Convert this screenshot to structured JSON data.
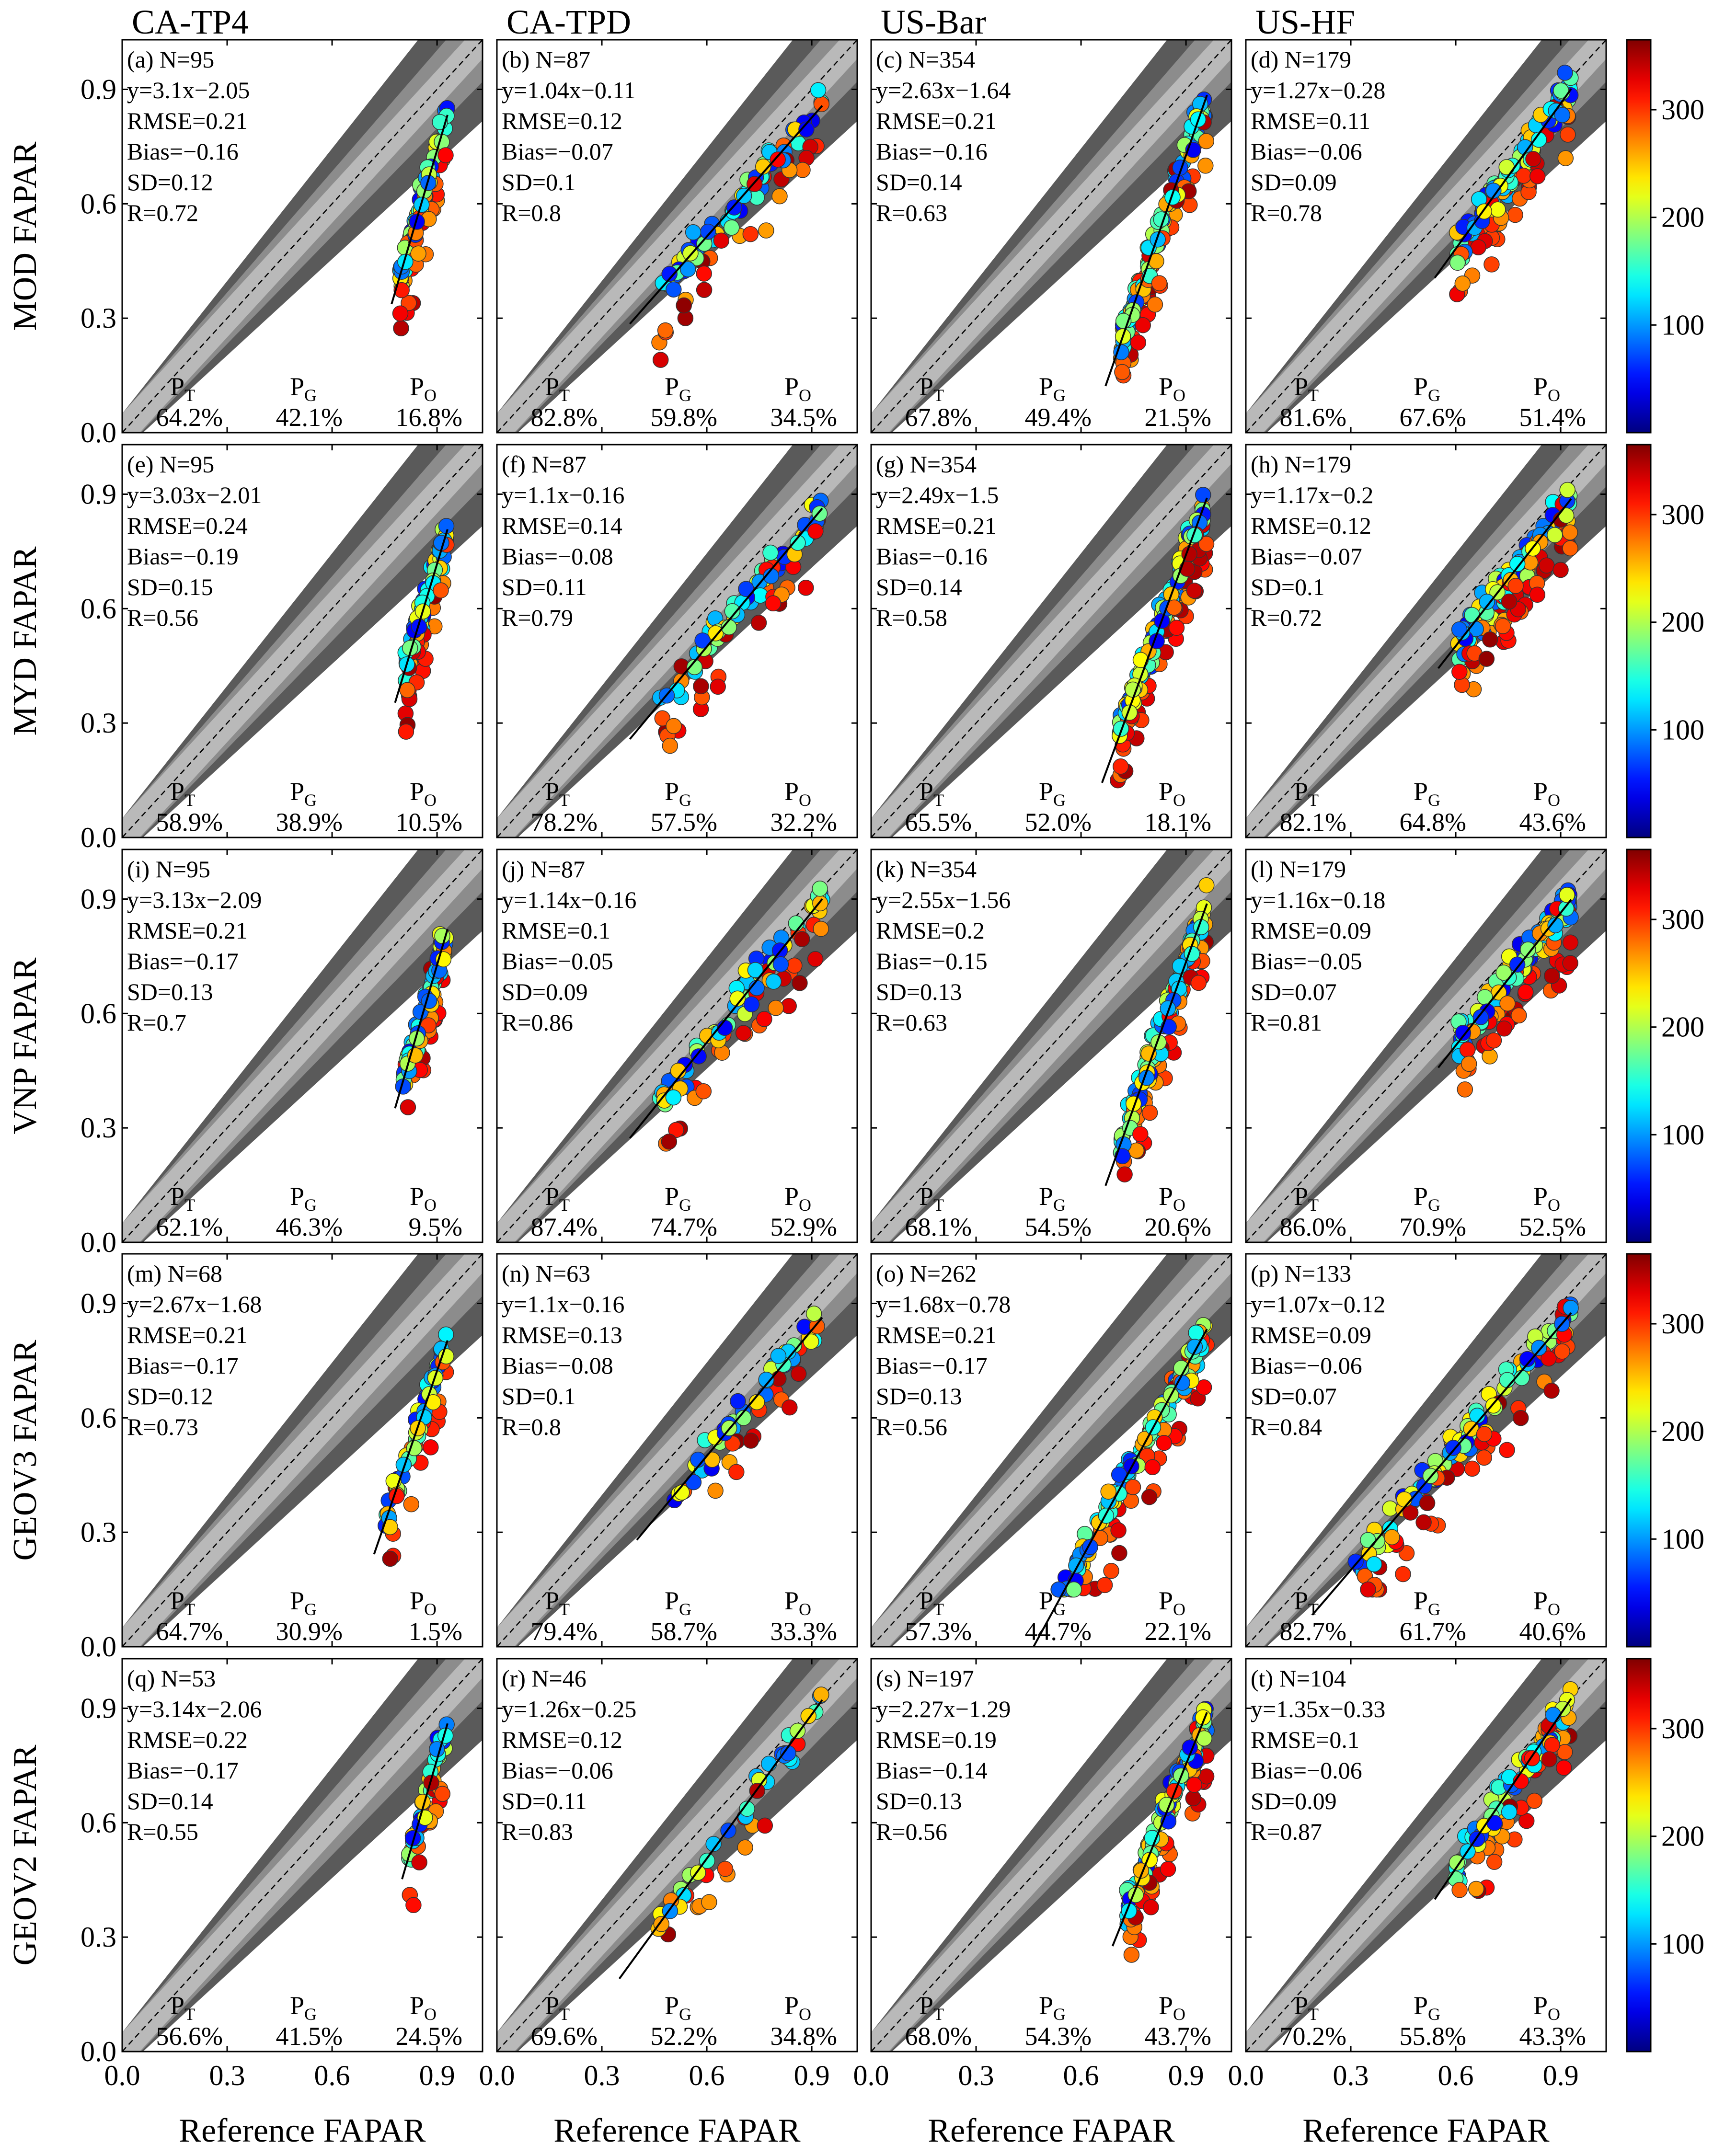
{
  "figure": {
    "xlabel": "Reference FAPAR",
    "column_titles": [
      "CA-TP4",
      "CA-TPD",
      "US-Bar",
      "US-HF"
    ],
    "row_labels": [
      "MOD FAPAR",
      "MYD FAPAR",
      "VNP FAPAR",
      "GEOV3 FAPAR",
      "GEOV2 FAPAR"
    ],
    "axis_range": [
      0,
      1.03
    ],
    "ticks": [
      "0.0",
      "0.3",
      "0.6",
      "0.9"
    ],
    "colorbar": {
      "range": [
        0,
        365
      ],
      "ticks": [
        "100",
        "200",
        "300"
      ],
      "colormap": "jet"
    },
    "shading": {
      "outer": "#5a5a5a",
      "middle": "#8c8c8c",
      "inner": "#b9b9b9"
    },
    "percent_labels": [
      "P",
      "P",
      "P"
    ],
    "percent_subs": [
      "T",
      "G",
      "O"
    ]
  },
  "chart_data": [
    {
      "panel": "(a)",
      "site": "CA-TP4",
      "product": "MOD FAPAR",
      "N": "N=95",
      "eq": "y=3.1x−2.05",
      "rmse": "RMSE=0.21",
      "bias": "Bias=−0.16",
      "sd": "SD=0.12",
      "r": "R=0.72",
      "pt": "64.2%",
      "pg": "42.1%",
      "po": "16.8%",
      "slope": 3.1,
      "intercept": -2.05,
      "xfit": [
        0.77,
        0.93
      ]
    },
    {
      "panel": "(b)",
      "site": "CA-TPD",
      "product": "MOD FAPAR",
      "N": "N=87",
      "eq": "y=1.04x−0.11",
      "rmse": "RMSE=0.12",
      "bias": "Bias=−0.07",
      "sd": "SD=0.1",
      "r": "R=0.8",
      "pt": "82.8%",
      "pg": "59.8%",
      "po": "34.5%",
      "slope": 1.04,
      "intercept": -0.11,
      "xfit": [
        0.38,
        0.93
      ]
    },
    {
      "panel": "(c)",
      "site": "US-Bar",
      "product": "MOD FAPAR",
      "N": "N=354",
      "eq": "y=2.63x−1.64",
      "rmse": "RMSE=0.21",
      "bias": "Bias=−0.16",
      "sd": "SD=0.14",
      "r": "R=0.63",
      "pt": "67.8%",
      "pg": "49.4%",
      "po": "21.5%",
      "slope": 2.63,
      "intercept": -1.64,
      "xfit": [
        0.67,
        0.96
      ]
    },
    {
      "panel": "(d)",
      "site": "US-HF",
      "product": "MOD FAPAR",
      "N": "N=179",
      "eq": "y=1.27x−0.28",
      "rmse": "RMSE=0.11",
      "bias": "Bias=−0.06",
      "sd": "SD=0.09",
      "r": "R=0.78",
      "pt": "81.6%",
      "pg": "67.6%",
      "po": "51.4%",
      "slope": 1.27,
      "intercept": -0.28,
      "xfit": [
        0.54,
        0.93
      ]
    },
    {
      "panel": "(e)",
      "site": "CA-TP4",
      "product": "MYD FAPAR",
      "N": "N=95",
      "eq": "y=3.03x−2.01",
      "rmse": "RMSE=0.24",
      "bias": "Bias=−0.19",
      "sd": "SD=0.15",
      "r": "R=0.56",
      "pt": "58.9%",
      "pg": "38.9%",
      "po": "10.5%",
      "slope": 3.03,
      "intercept": -2.01,
      "xfit": [
        0.78,
        0.93
      ]
    },
    {
      "panel": "(f)",
      "site": "CA-TPD",
      "product": "MYD FAPAR",
      "N": "N=87",
      "eq": "y=1.1x−0.16",
      "rmse": "RMSE=0.14",
      "bias": "Bias=−0.08",
      "sd": "SD=0.11",
      "r": "R=0.79",
      "pt": "78.2%",
      "pg": "57.5%",
      "po": "32.2%",
      "slope": 1.1,
      "intercept": -0.16,
      "xfit": [
        0.38,
        0.93
      ]
    },
    {
      "panel": "(g)",
      "site": "US-Bar",
      "product": "MYD FAPAR",
      "N": "N=354",
      "eq": "y=2.49x−1.5",
      "rmse": "RMSE=0.21",
      "bias": "Bias=−0.16",
      "sd": "SD=0.14",
      "r": "R=0.58",
      "pt": "65.5%",
      "pg": "52.0%",
      "po": "18.1%",
      "slope": 2.49,
      "intercept": -1.5,
      "xfit": [
        0.66,
        0.96
      ]
    },
    {
      "panel": "(h)",
      "site": "US-HF",
      "product": "MYD FAPAR",
      "N": "N=179",
      "eq": "y=1.17x−0.2",
      "rmse": "RMSE=0.12",
      "bias": "Bias=−0.07",
      "sd": "SD=0.1",
      "r": "R=0.72",
      "pt": "82.1%",
      "pg": "64.8%",
      "po": "43.6%",
      "slope": 1.17,
      "intercept": -0.2,
      "xfit": [
        0.55,
        0.93
      ]
    },
    {
      "panel": "(i)",
      "site": "CA-TP4",
      "product": "VNP FAPAR",
      "N": "N=95",
      "eq": "y=3.13x−2.09",
      "rmse": "RMSE=0.21",
      "bias": "Bias=−0.17",
      "sd": "SD=0.13",
      "r": "R=0.7",
      "pt": "62.1%",
      "pg": "46.3%",
      "po": "9.5%",
      "slope": 3.13,
      "intercept": -2.09,
      "xfit": [
        0.78,
        0.93
      ]
    },
    {
      "panel": "(j)",
      "site": "CA-TPD",
      "product": "VNP FAPAR",
      "N": "N=87",
      "eq": "y=1.14x−0.16",
      "rmse": "RMSE=0.1",
      "bias": "Bias=−0.05",
      "sd": "SD=0.09",
      "r": "R=0.86",
      "pt": "87.4%",
      "pg": "74.7%",
      "po": "52.9%",
      "slope": 1.14,
      "intercept": -0.16,
      "xfit": [
        0.38,
        0.93
      ]
    },
    {
      "panel": "(k)",
      "site": "US-Bar",
      "product": "VNP FAPAR",
      "N": "N=354",
      "eq": "y=2.55x−1.56",
      "rmse": "RMSE=0.2",
      "bias": "Bias=−0.15",
      "sd": "SD=0.13",
      "r": "R=0.63",
      "pt": "68.1%",
      "pg": "54.5%",
      "po": "20.6%",
      "slope": 2.55,
      "intercept": -1.56,
      "xfit": [
        0.67,
        0.96
      ]
    },
    {
      "panel": "(l)",
      "site": "US-HF",
      "product": "VNP FAPAR",
      "N": "N=179",
      "eq": "y=1.16x−0.18",
      "rmse": "RMSE=0.09",
      "bias": "Bias=−0.05",
      "sd": "SD=0.07",
      "r": "R=0.81",
      "pt": "86.0%",
      "pg": "70.9%",
      "po": "52.5%",
      "slope": 1.16,
      "intercept": -0.18,
      "xfit": [
        0.55,
        0.93
      ]
    },
    {
      "panel": "(m)",
      "site": "CA-TP4",
      "product": "GEOV3 FAPAR",
      "N": "N=68",
      "eq": "y=2.67x−1.68",
      "rmse": "RMSE=0.21",
      "bias": "Bias=−0.17",
      "sd": "SD=0.12",
      "r": "R=0.73",
      "pt": "64.7%",
      "pg": "30.9%",
      "po": "1.5%",
      "slope": 2.67,
      "intercept": -1.68,
      "xfit": [
        0.72,
        0.93
      ]
    },
    {
      "panel": "(n)",
      "site": "CA-TPD",
      "product": "GEOV3 FAPAR",
      "N": "N=63",
      "eq": "y=1.1x−0.16",
      "rmse": "RMSE=0.13",
      "bias": "Bias=−0.08",
      "sd": "SD=0.1",
      "r": "R=0.8",
      "pt": "79.4%",
      "pg": "58.7%",
      "po": "33.3%",
      "slope": 1.1,
      "intercept": -0.16,
      "xfit": [
        0.4,
        0.93
      ]
    },
    {
      "panel": "(o)",
      "site": "US-Bar",
      "product": "GEOV3 FAPAR",
      "N": "N=262",
      "eq": "y=1.68x−0.78",
      "rmse": "RMSE=0.21",
      "bias": "Bias=−0.17",
      "sd": "SD=0.13",
      "r": "R=0.56",
      "pt": "57.3%",
      "pg": "44.7%",
      "po": "22.1%",
      "slope": 1.68,
      "intercept": -0.78,
      "xfit": [
        0.46,
        0.96
      ]
    },
    {
      "panel": "(p)",
      "site": "US-HF",
      "product": "GEOV3 FAPAR",
      "N": "N=133",
      "eq": "y=1.07x−0.12",
      "rmse": "RMSE=0.09",
      "bias": "Bias=−0.06",
      "sd": "SD=0.07",
      "r": "R=0.84",
      "pt": "82.7%",
      "pg": "61.7%",
      "po": "40.6%",
      "slope": 1.07,
      "intercept": -0.12,
      "xfit": [
        0.19,
        0.93
      ]
    },
    {
      "panel": "(q)",
      "site": "CA-TP4",
      "product": "GEOV2 FAPAR",
      "N": "N=53",
      "eq": "y=3.14x−2.06",
      "rmse": "RMSE=0.22",
      "bias": "Bias=−0.17",
      "sd": "SD=0.14",
      "r": "R=0.55",
      "pt": "56.6%",
      "pg": "41.5%",
      "po": "24.5%",
      "slope": 3.14,
      "intercept": -2.06,
      "xfit": [
        0.8,
        0.93
      ]
    },
    {
      "panel": "(r)",
      "site": "CA-TPD",
      "product": "GEOV2 FAPAR",
      "N": "N=46",
      "eq": "y=1.26x−0.25",
      "rmse": "RMSE=0.12",
      "bias": "Bias=−0.06",
      "sd": "SD=0.11",
      "r": "R=0.83",
      "pt": "69.6%",
      "pg": "52.2%",
      "po": "34.8%",
      "slope": 1.26,
      "intercept": -0.25,
      "xfit": [
        0.35,
        0.93
      ]
    },
    {
      "panel": "(s)",
      "site": "US-Bar",
      "product": "GEOV2 FAPAR",
      "N": "N=197",
      "eq": "y=2.27x−1.29",
      "rmse": "RMSE=0.19",
      "bias": "Bias=−0.14",
      "sd": "SD=0.13",
      "r": "R=0.56",
      "pt": "68.0%",
      "pg": "54.3%",
      "po": "43.7%",
      "slope": 2.27,
      "intercept": -1.29,
      "xfit": [
        0.69,
        0.96
      ]
    },
    {
      "panel": "(t)",
      "site": "US-HF",
      "product": "GEOV2 FAPAR",
      "N": "N=104",
      "eq": "y=1.35x−0.33",
      "rmse": "RMSE=0.1",
      "bias": "Bias=−0.06",
      "sd": "SD=0.09",
      "r": "R=0.87",
      "pt": "70.2%",
      "pg": "55.8%",
      "po": "43.3%",
      "slope": 1.35,
      "intercept": -0.33,
      "xfit": [
        0.54,
        0.93
      ]
    }
  ]
}
